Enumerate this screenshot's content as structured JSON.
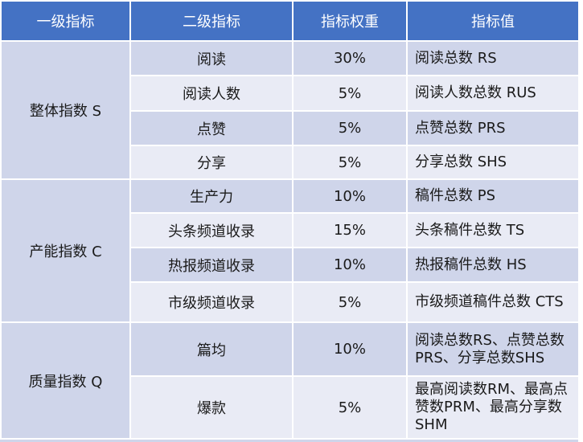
{
  "table": {
    "headers": [
      "一级指标",
      "二级指标",
      "指标权重",
      "指标值"
    ],
    "groups": [
      {
        "label": "整体指数 S",
        "rows": [
          {
            "sub": "阅读",
            "weight": "30%",
            "value": "阅读总数 RS"
          },
          {
            "sub": "阅读人数",
            "weight": "5%",
            "value": "阅读人数总数 RUS"
          },
          {
            "sub": "点赞",
            "weight": "5%",
            "value": "点赞总数 PRS"
          },
          {
            "sub": "分享",
            "weight": "5%",
            "value": "分享总数 SHS"
          }
        ]
      },
      {
        "label": "产能指数 C",
        "rows": [
          {
            "sub": "生产力",
            "weight": "10%",
            "value": "稿件总数 PS"
          },
          {
            "sub": "头条频道收录",
            "weight": "15%",
            "value": "头条稿件总数 TS"
          },
          {
            "sub": "热报频道收录",
            "weight": "10%",
            "value": "热报稿件总数 HS"
          },
          {
            "sub": "市级频道收录",
            "weight": "5%",
            "value": "市级频道稿件总数 CTS"
          }
        ]
      },
      {
        "label": "质量指数 Q",
        "rows": [
          {
            "sub": "篇均",
            "weight": "10%",
            "value": "阅读总数RS、点赞总数PRS、分享总数SHS"
          },
          {
            "sub": "爆款",
            "weight": "5%",
            "value": "最高阅读数RM、最高点赞数PRM、最高分享数SHM"
          }
        ]
      }
    ]
  },
  "colors": {
    "header_bg": "#4472c4",
    "header_text": "#ffffff",
    "row_dark": "#cfd5ea",
    "row_light": "#e9ebf5",
    "border": "#ffffff"
  }
}
